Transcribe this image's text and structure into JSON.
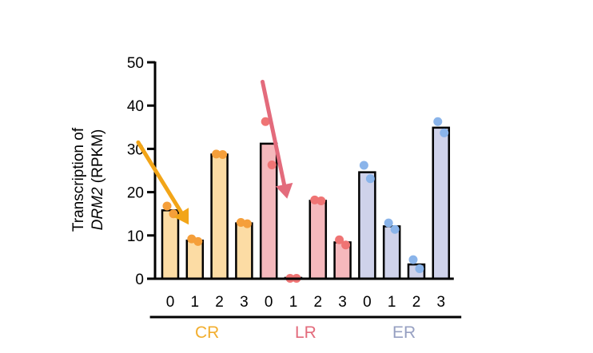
{
  "chart_data": {
    "type": "bar",
    "title": "",
    "ylabel_line1": "Transcription of",
    "ylabel_gene": "DRM2",
    "ylabel_unit": " (RPKM)",
    "ylim": [
      0,
      50
    ],
    "yticks": [
      "0",
      "10",
      "20",
      "30",
      "40",
      "50"
    ],
    "grid": false,
    "groups": [
      {
        "name": "CR",
        "label_color": "#f2ae2e",
        "bar_color": "#fcdca4",
        "point_color": "#f59f3a",
        "arrow_color": "#f2a518",
        "categories": [
          "0",
          "1",
          "2",
          "3"
        ],
        "values": [
          15.8,
          8.8,
          28.7,
          12.8
        ],
        "points": [
          [
            16.8,
            15.0
          ],
          [
            9.2,
            8.6
          ],
          [
            28.8,
            28.7
          ],
          [
            13.0,
            12.7
          ]
        ]
      },
      {
        "name": "LR",
        "label_color": "#e36b7c",
        "bar_color": "#f5b8bc",
        "point_color": "#ef7474",
        "arrow_color": "#e36b7c",
        "categories": [
          "0",
          "1",
          "2",
          "3"
        ],
        "values": [
          31.2,
          0.2,
          18.0,
          8.4
        ],
        "points": [
          [
            36.3,
            26.3
          ],
          [
            0.1,
            0.1
          ],
          [
            18.2,
            18.0
          ],
          [
            9.0,
            7.8
          ]
        ]
      },
      {
        "name": "ER",
        "label_color": "#97a0c2",
        "bar_color": "#cfd2ea",
        "point_color": "#8ab4ea",
        "categories": [
          "0",
          "1",
          "2",
          "3"
        ],
        "values": [
          24.6,
          12.1,
          3.3,
          34.9
        ],
        "points": [
          [
            26.2,
            23.1
          ],
          [
            12.9,
            11.4
          ],
          [
            4.4,
            2.3
          ],
          [
            36.3,
            33.7
          ]
        ]
      }
    ],
    "annotations": [
      {
        "type": "arrow",
        "group": "CR",
        "from": {
          "category_index": -1.3,
          "value": 31.5
        },
        "to": {
          "category_index": 0.75,
          "value": 12.5
        }
      },
      {
        "type": "arrow",
        "group": "LR",
        "from": {
          "category_index": -0.25,
          "value": 45.5
        },
        "to": {
          "category_index": 0.75,
          "value": 18.5
        }
      }
    ]
  }
}
